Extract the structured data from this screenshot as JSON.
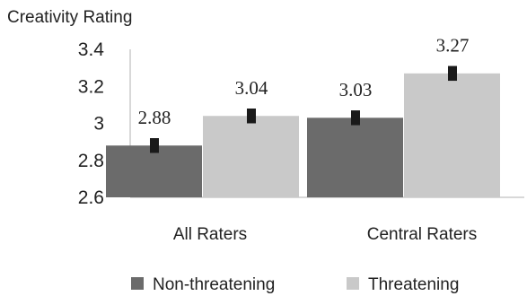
{
  "chart_data": {
    "type": "bar",
    "ylabel": "Creativity Rating",
    "categories": [
      "All Raters",
      "Central Raters"
    ],
    "series": [
      {
        "name": "Non-threatening",
        "values": [
          2.88,
          3.03
        ],
        "error": [
          0.04,
          0.04
        ],
        "color": "#6b6b6b",
        "data_labels": [
          "2.88",
          "3.03"
        ]
      },
      {
        "name": "Threatening",
        "values": [
          3.04,
          3.27
        ],
        "error": [
          0.04,
          0.04
        ],
        "color": "#c9c9c9",
        "data_labels": [
          "3.04",
          "3.27"
        ]
      }
    ],
    "ylim": [
      2.6,
      3.4
    ],
    "yticks": [
      3.4,
      3.2,
      3,
      2.8,
      2.6
    ],
    "ytick_labels": [
      "3.4",
      "3.2",
      "3",
      "2.8",
      "2.6"
    ],
    "grid": false,
    "legend_position": "bottom",
    "error_bar_color": "#1a1a1a"
  }
}
